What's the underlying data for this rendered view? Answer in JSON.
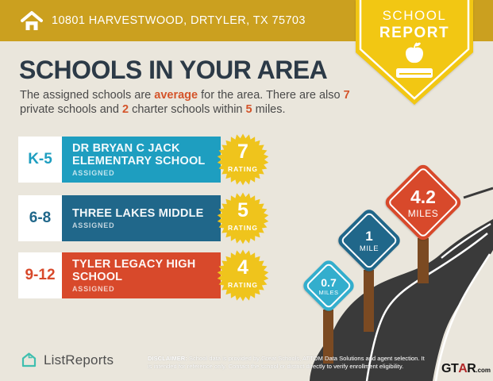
{
  "header": {
    "address": "10801 HARVESTWOOD, DRTYLER, TX 75703"
  },
  "ribbon": {
    "line1": "SCHOOL",
    "line2": "REPORT"
  },
  "title": "SCHOOLS IN YOUR AREA",
  "intro": {
    "s1": "The assigned schools are ",
    "h1": "average",
    "s2": " for the area. There are also ",
    "h2": "7",
    "s3": "private schools and ",
    "h3": "2",
    "s4": " charter schools within ",
    "h4": "5",
    "s5": " miles."
  },
  "schools": [
    {
      "grades": "K-5",
      "name": "DR BRYAN C JACK ELEMENTARY SCHOOL",
      "status": "ASSIGNED",
      "rating": "7",
      "rating_label": "RATING",
      "color": "#1E9EC0"
    },
    {
      "grades": "6-8",
      "name": "THREE LAKES MIDDLE",
      "status": "ASSIGNED",
      "rating": "5",
      "rating_label": "RATING",
      "color": "#20678A"
    },
    {
      "grades": "9-12",
      "name": "TYLER LEGACY HIGH SCHOOL",
      "status": "ASSIGNED",
      "rating": "4",
      "rating_label": "RATING",
      "color": "#D8492B"
    }
  ],
  "signs": [
    {
      "value": "0.7",
      "unit": "MILES",
      "color": "#33AECD"
    },
    {
      "value": "1",
      "unit": "MILE",
      "color": "#20678A"
    },
    {
      "value": "4.2",
      "unit": "MILES",
      "color": "#D8492B"
    }
  ],
  "footer": {
    "brand": "ListReports",
    "disclaimer_label": "DISCLAIMER:",
    "disclaimer_line1": " School data is provided by Great Schools, ATTOM Data Solutions and agent selection. It",
    "disclaimer_line2": "is intended for reference only. Contact the school or district directly to verify enrollment eligibility.",
    "logo_main": "GT",
    "logo_a": "A",
    "logo_r": "R",
    "logo_suffix": ".com"
  },
  "colors": {
    "header_gold": "#CBA01F",
    "ribbon_yellow": "#F2C713",
    "background_cream": "#EAE6DC",
    "title_navy": "#2C3A47",
    "accent_orange": "#D4542A",
    "starburst_yellow": "#EFC41C",
    "road_dark": "#3A3A3A",
    "post_brown": "#7B4A22",
    "listreports_teal": "#3FBFAF"
  }
}
